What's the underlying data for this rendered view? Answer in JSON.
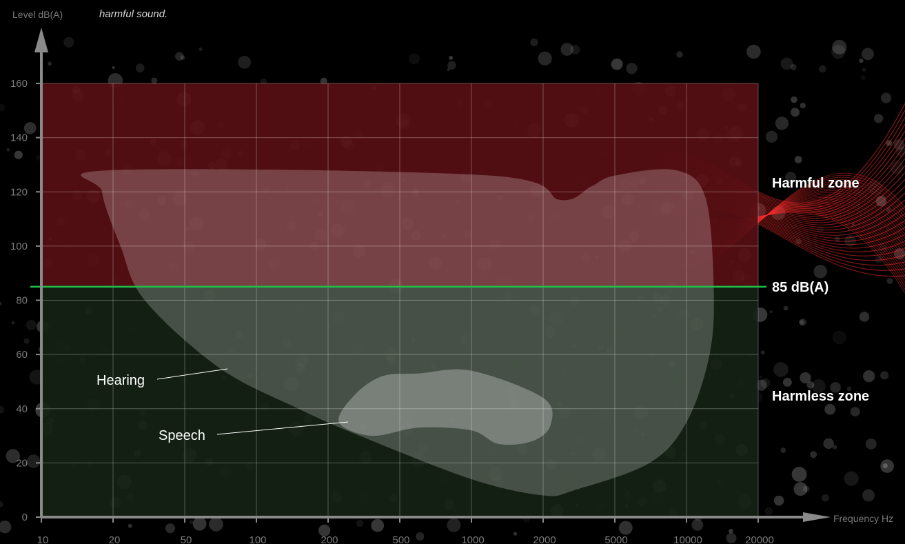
{
  "intro_text": "harmful sound.",
  "chart_data": {
    "type": "area",
    "title": "",
    "xlabel": "Frequency Hz",
    "ylabel": "Level dB(A)",
    "x_scale": "log",
    "xticks": [
      10,
      20,
      50,
      100,
      200,
      500,
      1000,
      2000,
      5000,
      10000,
      20000
    ],
    "yticks": [
      0,
      20,
      40,
      60,
      80,
      100,
      120,
      140,
      160
    ],
    "xlim": [
      10,
      20000
    ],
    "ylim": [
      0,
      160
    ],
    "grid": true,
    "threshold": {
      "value": 85,
      "label": "85 dB(A)",
      "color": "#1fbf4a"
    },
    "zones": [
      {
        "label": "Harmful zone",
        "from": 85,
        "to": 160,
        "color": "#5a0f14"
      },
      {
        "label": "Harmless zone",
        "from": 0,
        "to": 85,
        "color": "#142214"
      }
    ],
    "regions": [
      {
        "name": "Hearing",
        "color": "#ffffff",
        "outline": [
          [
            20,
            128
          ],
          [
            1200,
            126
          ],
          [
            2500,
            117
          ],
          [
            3700,
            122
          ],
          [
            5000,
            126
          ],
          [
            9000,
            128
          ],
          [
            12000,
            118
          ],
          [
            13000,
            85
          ],
          [
            12500,
            60
          ],
          [
            10000,
            35
          ],
          [
            7000,
            20
          ],
          [
            3000,
            10
          ],
          [
            2000,
            8
          ],
          [
            1000,
            14
          ],
          [
            300,
            30
          ],
          [
            150,
            40
          ],
          [
            70,
            55
          ],
          [
            30,
            80
          ],
          [
            22,
            100
          ],
          [
            18,
            120
          ]
        ]
      },
      {
        "name": "Speech",
        "color": "#ffffff",
        "outline": [
          [
            600,
            53
          ],
          [
            1000,
            54
          ],
          [
            2000,
            44
          ],
          [
            2200,
            34
          ],
          [
            1800,
            28
          ],
          [
            1300,
            27
          ],
          [
            1000,
            32
          ],
          [
            600,
            33
          ],
          [
            350,
            30
          ],
          [
            230,
            35
          ],
          [
            280,
            45
          ],
          [
            400,
            52
          ]
        ]
      }
    ]
  }
}
